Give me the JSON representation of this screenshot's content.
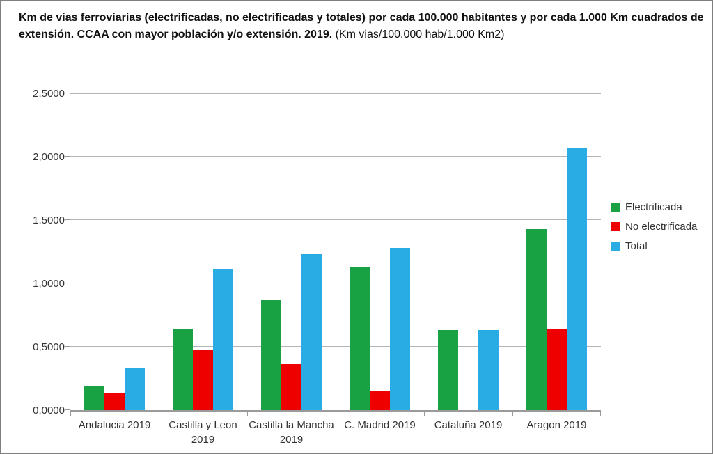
{
  "title": {
    "bold": "Km de vias ferroviarias (electrificadas, no electrificadas y totales) por cada 100.000 habitantes y por cada 1.000 Km cuadrados de extensión. CCAA con mayor población y/o extensión. 2019.",
    "note": "(Km vias/100.000 hab/1.000 Km2)"
  },
  "chart_data": {
    "type": "bar",
    "categories": [
      "Andalucia 2019",
      "Castilla y Leon 2019",
      "Castilla la Mancha 2019",
      "C. Madrid 2019",
      "Cataluña 2019",
      "Aragon 2019"
    ],
    "series": [
      {
        "name": "Electrificada",
        "color": "#18a244",
        "values": [
          0.19,
          0.64,
          0.87,
          1.13,
          0.63,
          1.43
        ]
      },
      {
        "name": "No electrificada",
        "color": "#ee0000",
        "values": [
          0.14,
          0.47,
          0.36,
          0.15,
          0.0,
          0.64
        ]
      },
      {
        "name": "Total",
        "color": "#29ace3",
        "values": [
          0.33,
          1.11,
          1.23,
          1.28,
          0.63,
          2.07
        ]
      }
    ],
    "ylim": [
      0,
      2.5
    ],
    "ytick_step": 0.5,
    "ytick_labels": [
      "0,0000",
      "0,5000",
      "1,0000",
      "1,5000",
      "2,0000",
      "2,5000"
    ],
    "grid": true,
    "legend_position": "right"
  },
  "colors": {
    "grid": "#b3b3b3",
    "axis": "#9a9a9a",
    "tick_text": "#333333"
  }
}
